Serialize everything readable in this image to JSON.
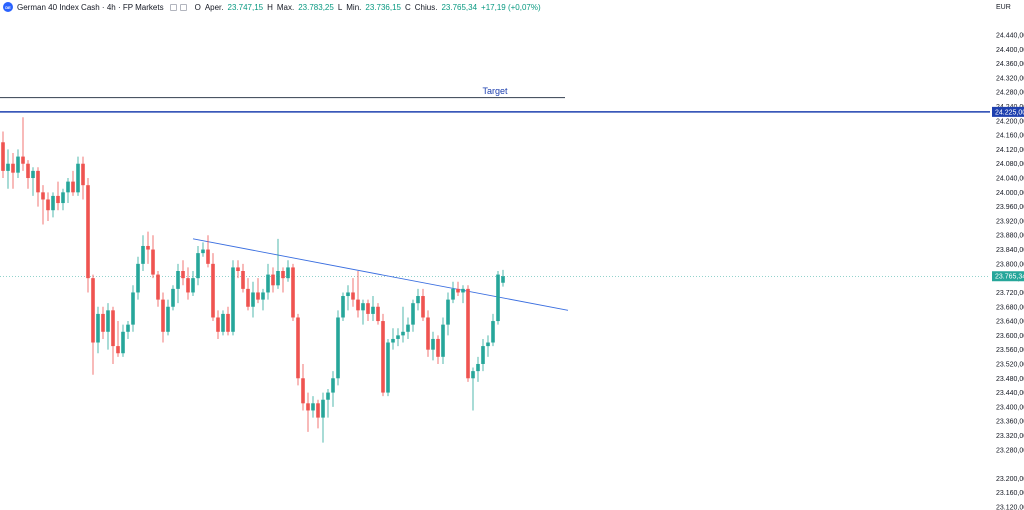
{
  "legend": {
    "symbol": "German 40 Index Cash · 4h · FP Markets",
    "o_label": "O",
    "o_text": "Aper.",
    "o_value": "23.747,15",
    "h_label": "H",
    "h_text": "Max.",
    "h_value": "23.783,25",
    "l_label": "L",
    "l_text": "Min.",
    "l_value": "23.736,15",
    "c_label": "C",
    "c_text": "Chius.",
    "c_value": "23.765,34",
    "change": "+17,19 (+0,07%)"
  },
  "axis": {
    "currency": "EUR"
  },
  "annotations": {
    "target_text": "Target"
  },
  "colors": {
    "up": "#26a69a",
    "down": "#ef5350",
    "target_line": "#1e40af",
    "trend_line": "#3b6fe0"
  },
  "chart_data": {
    "type": "candlestick",
    "timeframe": "4h",
    "ylim": [
      23120,
      24480
    ],
    "y_ticks": [
      "24.440,00",
      "24.400,00",
      "24.360,00",
      "24.320,00",
      "24.280,00",
      "24.240,00",
      "24.200,00",
      "24.160,00",
      "24.120,00",
      "24.080,00",
      "24.040,00",
      "24.000,00",
      "23.960,00",
      "23.920,00",
      "23.880,00",
      "23.840,00",
      "23.800,00",
      "23.760,00",
      "23.720,00",
      "23.680,00",
      "23.640,00",
      "23.600,00",
      "23.560,00",
      "23.520,00",
      "23.480,00",
      "23.440,00",
      "23.400,00",
      "23.360,00",
      "23.320,00",
      "23.280,00",
      "23.200,00",
      "23.160,00",
      "23.120,00"
    ],
    "y_tick_values": [
      24440,
      24400,
      24360,
      24320,
      24280,
      24240,
      24200,
      24160,
      24120,
      24080,
      24040,
      24000,
      23960,
      23920,
      23880,
      23840,
      23800,
      23760,
      23720,
      23680,
      23640,
      23600,
      23560,
      23520,
      23480,
      23440,
      23400,
      23360,
      23320,
      23280,
      23200,
      23160,
      23120
    ],
    "last_price": {
      "value": 23765.34,
      "label": "23.765,34"
    },
    "target_level": {
      "value": 24225.0,
      "label": "24.225,00"
    },
    "resistance_level": 24265,
    "trendline": {
      "start_bar": 38,
      "start_price": 23870,
      "end_bar": 113,
      "end_price": 23670
    },
    "candles": [
      [
        24140,
        24170,
        24040,
        24060
      ],
      [
        24060,
        24120,
        24010,
        24080
      ],
      [
        24080,
        24110,
        24010,
        24055
      ],
      [
        24055,
        24120,
        24040,
        24100
      ],
      [
        24100,
        24210,
        24060,
        24080
      ],
      [
        24080,
        24090,
        24010,
        24040
      ],
      [
        24040,
        24070,
        23990,
        24060
      ],
      [
        24060,
        24070,
        23960,
        24000
      ],
      [
        24000,
        24020,
        23910,
        23980
      ],
      [
        23980,
        24000,
        23920,
        23950
      ],
      [
        23950,
        24000,
        23930,
        23990
      ],
      [
        23990,
        24030,
        23950,
        23970
      ],
      [
        23970,
        24010,
        23950,
        24000
      ],
      [
        24000,
        24040,
        23970,
        24030
      ],
      [
        24030,
        24060,
        23990,
        24000
      ],
      [
        24000,
        24100,
        23990,
        24080
      ],
      [
        24080,
        24100,
        23980,
        24020
      ],
      [
        24020,
        24040,
        23720,
        23760
      ],
      [
        23760,
        23770,
        23490,
        23580
      ],
      [
        23580,
        23680,
        23550,
        23660
      ],
      [
        23660,
        23680,
        23590,
        23610
      ],
      [
        23610,
        23690,
        23560,
        23670
      ],
      [
        23670,
        23680,
        23520,
        23570
      ],
      [
        23570,
        23640,
        23540,
        23550
      ],
      [
        23550,
        23630,
        23540,
        23610
      ],
      [
        23610,
        23640,
        23590,
        23630
      ],
      [
        23630,
        23740,
        23610,
        23720
      ],
      [
        23720,
        23820,
        23700,
        23800
      ],
      [
        23800,
        23880,
        23780,
        23850
      ],
      [
        23850,
        23890,
        23800,
        23840
      ],
      [
        23840,
        23880,
        23760,
        23770
      ],
      [
        23770,
        23780,
        23680,
        23700
      ],
      [
        23700,
        23720,
        23580,
        23610
      ],
      [
        23610,
        23700,
        23600,
        23680
      ],
      [
        23680,
        23740,
        23670,
        23730
      ],
      [
        23730,
        23800,
        23690,
        23780
      ],
      [
        23780,
        23810,
        23740,
        23760
      ],
      [
        23760,
        23790,
        23700,
        23720
      ],
      [
        23720,
        23780,
        23710,
        23760
      ],
      [
        23760,
        23850,
        23740,
        23830
      ],
      [
        23830,
        23860,
        23820,
        23840
      ],
      [
        23840,
        23880,
        23790,
        23800
      ],
      [
        23800,
        23830,
        23640,
        23650
      ],
      [
        23650,
        23670,
        23590,
        23610
      ],
      [
        23610,
        23670,
        23600,
        23660
      ],
      [
        23660,
        23680,
        23600,
        23610
      ],
      [
        23610,
        23810,
        23600,
        23790
      ],
      [
        23790,
        23810,
        23760,
        23780
      ],
      [
        23780,
        23800,
        23720,
        23730
      ],
      [
        23730,
        23760,
        23670,
        23680
      ],
      [
        23680,
        23750,
        23650,
        23720
      ],
      [
        23720,
        23760,
        23690,
        23700
      ],
      [
        23700,
        23730,
        23670,
        23720
      ],
      [
        23720,
        23800,
        23700,
        23770
      ],
      [
        23770,
        23790,
        23720,
        23740
      ],
      [
        23740,
        23870,
        23730,
        23780
      ],
      [
        23780,
        23790,
        23720,
        23760
      ],
      [
        23760,
        23810,
        23750,
        23790
      ],
      [
        23790,
        23800,
        23640,
        23650
      ],
      [
        23650,
        23660,
        23460,
        23480
      ],
      [
        23480,
        23520,
        23390,
        23410
      ],
      [
        23410,
        23440,
        23330,
        23390
      ],
      [
        23390,
        23430,
        23370,
        23410
      ],
      [
        23410,
        23420,
        23340,
        23370
      ],
      [
        23370,
        23440,
        23300,
        23420
      ],
      [
        23420,
        23450,
        23370,
        23440
      ],
      [
        23440,
        23500,
        23400,
        23480
      ],
      [
        23480,
        23670,
        23460,
        23650
      ],
      [
        23650,
        23720,
        23640,
        23710
      ],
      [
        23710,
        23740,
        23670,
        23720
      ],
      [
        23720,
        23760,
        23680,
        23700
      ],
      [
        23700,
        23780,
        23650,
        23670
      ],
      [
        23670,
        23700,
        23630,
        23690
      ],
      [
        23690,
        23700,
        23640,
        23660
      ],
      [
        23660,
        23710,
        23640,
        23680
      ],
      [
        23680,
        23690,
        23630,
        23640
      ],
      [
        23640,
        23660,
        23430,
        23440
      ],
      [
        23440,
        23590,
        23430,
        23580
      ],
      [
        23580,
        23620,
        23560,
        23590
      ],
      [
        23590,
        23620,
        23570,
        23600
      ],
      [
        23600,
        23680,
        23580,
        23610
      ],
      [
        23610,
        23650,
        23590,
        23630
      ],
      [
        23630,
        23700,
        23610,
        23690
      ],
      [
        23690,
        23730,
        23670,
        23710
      ],
      [
        23710,
        23730,
        23640,
        23650
      ],
      [
        23650,
        23670,
        23540,
        23560
      ],
      [
        23560,
        23610,
        23530,
        23590
      ],
      [
        23590,
        23600,
        23520,
        23540
      ],
      [
        23540,
        23650,
        23520,
        23630
      ],
      [
        23630,
        23720,
        23600,
        23700
      ],
      [
        23700,
        23750,
        23690,
        23730
      ],
      [
        23730,
        23750,
        23710,
        23720
      ],
      [
        23720,
        23740,
        23690,
        23730
      ],
      [
        23730,
        23740,
        23470,
        23480
      ],
      [
        23480,
        23510,
        23390,
        23500
      ],
      [
        23500,
        23540,
        23470,
        23520
      ],
      [
        23520,
        23590,
        23500,
        23570
      ],
      [
        23570,
        23600,
        23540,
        23580
      ],
      [
        23580,
        23660,
        23570,
        23640
      ],
      [
        23640,
        23780,
        23630,
        23770
      ],
      [
        23747.15,
        23783.25,
        23736.15,
        23765.34
      ]
    ]
  }
}
